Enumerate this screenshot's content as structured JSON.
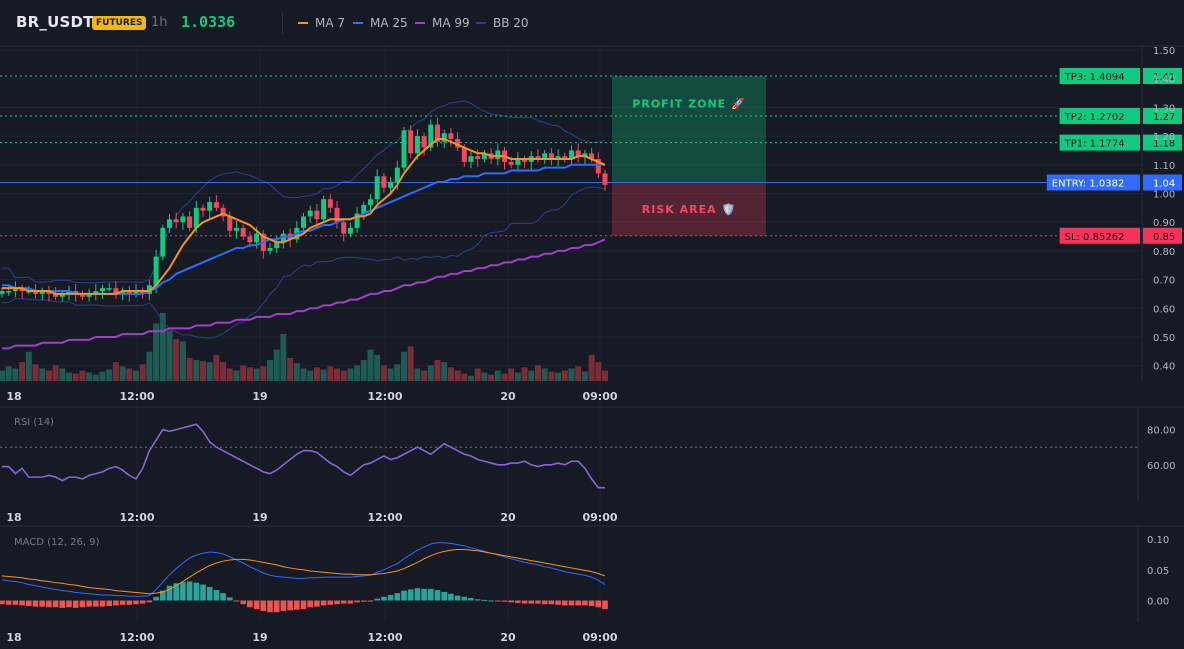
{
  "header": {
    "symbol": "BR_USDT",
    "badge": "FUTURES",
    "timeframe": "1h",
    "last_price": "1.0336",
    "indicators": [
      {
        "label": "MA 7",
        "color": "#f7931a"
      },
      {
        "label": "MA 25",
        "color": "#2f6bff"
      },
      {
        "label": "MA 99",
        "color": "#a23fc7"
      },
      {
        "label": "BB 20",
        "color": "#2b3f8f"
      }
    ]
  },
  "colors": {
    "up": "#0ecb81",
    "down": "#f6465d",
    "vol_up": "#1e5b52",
    "vol_down": "#7a2c37",
    "background": "#161a25"
  },
  "chart_data": [
    {
      "type": "candlestick",
      "pane": "price",
      "y_ticks": [
        "1.50",
        "1.40",
        "1.30",
        "1.20",
        "1.10",
        "1.00",
        "0.90",
        "0.80",
        "0.70",
        "0.60",
        "0.50",
        "0.40"
      ],
      "x_ticks": [
        "18",
        "12:00",
        "19",
        "12:00",
        "20",
        "09:00"
      ],
      "ylim": [
        0.35,
        1.5
      ],
      "levels": [
        {
          "label": "TP3: 1.4094",
          "axis_label": "1.41",
          "value": 1.4094,
          "color": "#0ecb81"
        },
        {
          "label": "TP2: 1.2702",
          "axis_label": "1.27",
          "value": 1.2702,
          "color": "#0ecb81"
        },
        {
          "label": "TP1: 1.1774",
          "axis_label": "1.18",
          "value": 1.1774,
          "color": "#0ecb81"
        },
        {
          "label": "ENTRY: 1.0382",
          "axis_label": "1.04",
          "value": 1.0382,
          "color": "#2f6bff"
        },
        {
          "label": "SL: 0.85262",
          "axis_label": "0.85",
          "value": 0.85262,
          "color": "#f6335d"
        }
      ],
      "zones": [
        {
          "label": "PROFIT ZONE 🚀",
          "from": 1.0382,
          "to": 1.4094,
          "color": "#0ecb81"
        },
        {
          "label": "RISK AREA 🛡️",
          "from": 0.85262,
          "to": 1.0382,
          "color": "#f6465d"
        }
      ],
      "series": {
        "close": [
          0.66,
          0.66,
          0.67,
          0.66,
          0.66,
          0.65,
          0.66,
          0.65,
          0.64,
          0.65,
          0.66,
          0.65,
          0.64,
          0.65,
          0.66,
          0.67,
          0.67,
          0.65,
          0.66,
          0.65,
          0.66,
          0.65,
          0.68,
          0.78,
          0.88,
          0.91,
          0.9,
          0.92,
          0.88,
          0.95,
          0.94,
          0.97,
          0.95,
          0.92,
          0.87,
          0.88,
          0.85,
          0.83,
          0.86,
          0.8,
          0.81,
          0.83,
          0.86,
          0.84,
          0.88,
          0.92,
          0.94,
          0.91,
          0.98,
          0.95,
          0.9,
          0.86,
          0.88,
          0.93,
          0.96,
          0.98,
          1.06,
          1.02,
          1.04,
          1.09,
          1.22,
          1.14,
          1.2,
          1.16,
          1.24,
          1.18,
          1.21,
          1.19,
          1.16,
          1.11,
          1.13,
          1.12,
          1.14,
          1.12,
          1.15,
          1.11,
          1.1,
          1.12,
          1.11,
          1.13,
          1.12,
          1.14,
          1.12,
          1.13,
          1.12,
          1.15,
          1.13,
          1.14,
          1.12,
          1.07,
          1.03
        ],
        "ma7": [
          0.67,
          0.67,
          0.67,
          0.67,
          0.66,
          0.66,
          0.66,
          0.66,
          0.65,
          0.65,
          0.65,
          0.65,
          0.65,
          0.65,
          0.65,
          0.65,
          0.65,
          0.65,
          0.66,
          0.66,
          0.66,
          0.66,
          0.66,
          0.68,
          0.71,
          0.74,
          0.78,
          0.82,
          0.85,
          0.88,
          0.9,
          0.91,
          0.92,
          0.93,
          0.92,
          0.91,
          0.9,
          0.89,
          0.87,
          0.85,
          0.84,
          0.83,
          0.83,
          0.84,
          0.85,
          0.86,
          0.88,
          0.89,
          0.9,
          0.91,
          0.91,
          0.91,
          0.91,
          0.92,
          0.92,
          0.93,
          0.96,
          0.98,
          1.0,
          1.03,
          1.07,
          1.1,
          1.13,
          1.15,
          1.17,
          1.19,
          1.19,
          1.18,
          1.17,
          1.16,
          1.15,
          1.14,
          1.14,
          1.13,
          1.13,
          1.13,
          1.12,
          1.12,
          1.12,
          1.12,
          1.12,
          1.12,
          1.12,
          1.12,
          1.12,
          1.12,
          1.13,
          1.13,
          1.12,
          1.11,
          1.1
        ],
        "ma25": [
          0.68,
          0.68,
          0.67,
          0.67,
          0.67,
          0.66,
          0.66,
          0.66,
          0.66,
          0.66,
          0.66,
          0.65,
          0.65,
          0.65,
          0.65,
          0.65,
          0.65,
          0.65,
          0.65,
          0.65,
          0.65,
          0.65,
          0.66,
          0.67,
          0.69,
          0.7,
          0.72,
          0.73,
          0.74,
          0.75,
          0.76,
          0.77,
          0.78,
          0.79,
          0.8,
          0.81,
          0.81,
          0.82,
          0.82,
          0.83,
          0.84,
          0.84,
          0.85,
          0.85,
          0.86,
          0.87,
          0.87,
          0.88,
          0.89,
          0.89,
          0.9,
          0.91,
          0.91,
          0.92,
          0.93,
          0.94,
          0.95,
          0.96,
          0.97,
          0.98,
          0.99,
          1.0,
          1.01,
          1.02,
          1.03,
          1.04,
          1.04,
          1.05,
          1.05,
          1.06,
          1.06,
          1.06,
          1.07,
          1.07,
          1.07,
          1.07,
          1.08,
          1.08,
          1.08,
          1.08,
          1.08,
          1.09,
          1.09,
          1.09,
          1.09,
          1.1,
          1.1,
          1.1,
          1.1,
          1.1,
          1.1
        ],
        "ma99": [
          0.46,
          0.46,
          0.47,
          0.47,
          0.47,
          0.47,
          0.48,
          0.48,
          0.48,
          0.48,
          0.49,
          0.49,
          0.49,
          0.49,
          0.5,
          0.5,
          0.5,
          0.5,
          0.51,
          0.51,
          0.51,
          0.51,
          0.52,
          0.52,
          0.52,
          0.53,
          0.53,
          0.53,
          0.53,
          0.54,
          0.54,
          0.54,
          0.55,
          0.55,
          0.55,
          0.56,
          0.56,
          0.56,
          0.57,
          0.57,
          0.57,
          0.58,
          0.58,
          0.58,
          0.59,
          0.59,
          0.6,
          0.6,
          0.61,
          0.61,
          0.62,
          0.62,
          0.63,
          0.63,
          0.64,
          0.65,
          0.65,
          0.66,
          0.66,
          0.67,
          0.68,
          0.68,
          0.69,
          0.69,
          0.7,
          0.71,
          0.71,
          0.72,
          0.72,
          0.73,
          0.73,
          0.74,
          0.74,
          0.75,
          0.75,
          0.76,
          0.76,
          0.77,
          0.77,
          0.78,
          0.78,
          0.79,
          0.79,
          0.8,
          0.8,
          0.81,
          0.81,
          0.82,
          0.82,
          0.83,
          0.84
        ],
        "volume": [
          0.1,
          0.14,
          0.12,
          0.18,
          0.28,
          0.16,
          0.12,
          0.1,
          0.15,
          0.12,
          0.08,
          0.07,
          0.1,
          0.08,
          0.06,
          0.09,
          0.11,
          0.18,
          0.14,
          0.12,
          0.1,
          0.16,
          0.28,
          0.55,
          0.65,
          0.48,
          0.4,
          0.38,
          0.22,
          0.2,
          0.19,
          0.18,
          0.25,
          0.18,
          0.12,
          0.1,
          0.15,
          0.13,
          0.12,
          0.14,
          0.2,
          0.3,
          0.45,
          0.22,
          0.17,
          0.12,
          0.1,
          0.13,
          0.11,
          0.14,
          0.12,
          0.1,
          0.12,
          0.15,
          0.2,
          0.3,
          0.25,
          0.15,
          0.12,
          0.16,
          0.28,
          0.33,
          0.12,
          0.1,
          0.15,
          0.2,
          0.18,
          0.13,
          0.1,
          0.07,
          0.05,
          0.12,
          0.08,
          0.06,
          0.1,
          0.07,
          0.12,
          0.08,
          0.13,
          0.1,
          0.15,
          0.12,
          0.09,
          0.08,
          0.1,
          0.12,
          0.14,
          0.09,
          0.25,
          0.18,
          0.1
        ]
      }
    },
    {
      "type": "line",
      "pane": "rsi",
      "title": "RSI (14)",
      "y_ticks": [
        "80.00",
        "60.00"
      ],
      "ylim": [
        40,
        90
      ],
      "reference_line": 70,
      "values": [
        59,
        59,
        55,
        58,
        53,
        53,
        53,
        54,
        53,
        51,
        53,
        53,
        52,
        54,
        55,
        56,
        58,
        59,
        57,
        54,
        52,
        58,
        68,
        74,
        80,
        79,
        80,
        81,
        82,
        83,
        79,
        73,
        70,
        68,
        66,
        64,
        62,
        60,
        58,
        56,
        55,
        57,
        60,
        63,
        66,
        68,
        68,
        67,
        64,
        61,
        59,
        56,
        54,
        57,
        60,
        61,
        63,
        65,
        63,
        64,
        66,
        68,
        70,
        68,
        66,
        69,
        72,
        70,
        68,
        66,
        65,
        63,
        62,
        61,
        60,
        60,
        61,
        61,
        62,
        60,
        59,
        60,
        60,
        61,
        60,
        62,
        62,
        58,
        52,
        47,
        47
      ],
      "color": "#8466d6"
    },
    {
      "type": "bar+line",
      "pane": "macd",
      "title": "MACD (12, 26, 9)",
      "y_ticks": [
        "0.10",
        "0.05",
        "0.00"
      ],
      "ylim": [
        -0.035,
        0.105
      ],
      "macd": [
        0.034,
        0.032,
        0.031,
        0.029,
        0.026,
        0.024,
        0.022,
        0.02,
        0.018,
        0.016,
        0.015,
        0.013,
        0.012,
        0.011,
        0.01,
        0.009,
        0.009,
        0.008,
        0.008,
        0.007,
        0.007,
        0.007,
        0.008,
        0.018,
        0.03,
        0.042,
        0.052,
        0.061,
        0.069,
        0.074,
        0.077,
        0.079,
        0.078,
        0.076,
        0.071,
        0.066,
        0.061,
        0.055,
        0.05,
        0.045,
        0.041,
        0.039,
        0.038,
        0.037,
        0.036,
        0.036,
        0.037,
        0.037,
        0.038,
        0.038,
        0.038,
        0.038,
        0.038,
        0.039,
        0.04,
        0.041,
        0.046,
        0.05,
        0.055,
        0.06,
        0.068,
        0.075,
        0.082,
        0.087,
        0.092,
        0.094,
        0.094,
        0.093,
        0.091,
        0.089,
        0.086,
        0.083,
        0.08,
        0.077,
        0.074,
        0.071,
        0.068,
        0.065,
        0.062,
        0.06,
        0.058,
        0.055,
        0.053,
        0.05,
        0.047,
        0.045,
        0.043,
        0.041,
        0.038,
        0.033,
        0.026
      ],
      "signal": [
        0.04,
        0.039,
        0.038,
        0.037,
        0.035,
        0.034,
        0.032,
        0.031,
        0.029,
        0.028,
        0.026,
        0.025,
        0.023,
        0.021,
        0.02,
        0.019,
        0.018,
        0.016,
        0.015,
        0.014,
        0.013,
        0.012,
        0.011,
        0.012,
        0.014,
        0.018,
        0.024,
        0.031,
        0.038,
        0.045,
        0.051,
        0.057,
        0.061,
        0.064,
        0.066,
        0.067,
        0.067,
        0.066,
        0.064,
        0.062,
        0.06,
        0.058,
        0.055,
        0.053,
        0.051,
        0.05,
        0.048,
        0.047,
        0.046,
        0.045,
        0.044,
        0.043,
        0.043,
        0.042,
        0.042,
        0.042,
        0.043,
        0.044,
        0.046,
        0.048,
        0.052,
        0.057,
        0.062,
        0.068,
        0.073,
        0.077,
        0.08,
        0.082,
        0.083,
        0.083,
        0.082,
        0.081,
        0.079,
        0.077,
        0.075,
        0.073,
        0.071,
        0.069,
        0.067,
        0.065,
        0.063,
        0.061,
        0.059,
        0.057,
        0.055,
        0.053,
        0.051,
        0.049,
        0.047,
        0.044,
        0.04
      ],
      "histogram": [
        -0.006,
        -0.007,
        -0.007,
        -0.008,
        -0.009,
        -0.01,
        -0.01,
        -0.011,
        -0.011,
        -0.012,
        -0.011,
        -0.012,
        -0.011,
        -0.01,
        -0.01,
        -0.01,
        -0.009,
        -0.008,
        -0.007,
        -0.007,
        -0.006,
        -0.005,
        -0.003,
        0.006,
        0.016,
        0.024,
        0.028,
        0.03,
        0.031,
        0.029,
        0.026,
        0.022,
        0.017,
        0.012,
        0.005,
        -0.001,
        -0.006,
        -0.011,
        -0.014,
        -0.017,
        -0.019,
        -0.019,
        -0.017,
        -0.016,
        -0.015,
        -0.014,
        -0.011,
        -0.01,
        -0.008,
        -0.007,
        -0.006,
        -0.005,
        -0.005,
        -0.003,
        -0.002,
        -0.001,
        0.003,
        0.006,
        0.009,
        0.012,
        0.016,
        0.018,
        0.02,
        0.019,
        0.019,
        0.017,
        0.014,
        0.011,
        0.008,
        0.006,
        0.004,
        0.002,
        0.001,
        0.0,
        -0.001,
        -0.002,
        -0.003,
        -0.004,
        -0.005,
        -0.005,
        -0.005,
        -0.006,
        -0.006,
        -0.007,
        -0.008,
        -0.008,
        -0.008,
        -0.008,
        -0.009,
        -0.011,
        -0.014
      ],
      "macd_color": "#2f6bff",
      "signal_color": "#f7931a"
    }
  ]
}
